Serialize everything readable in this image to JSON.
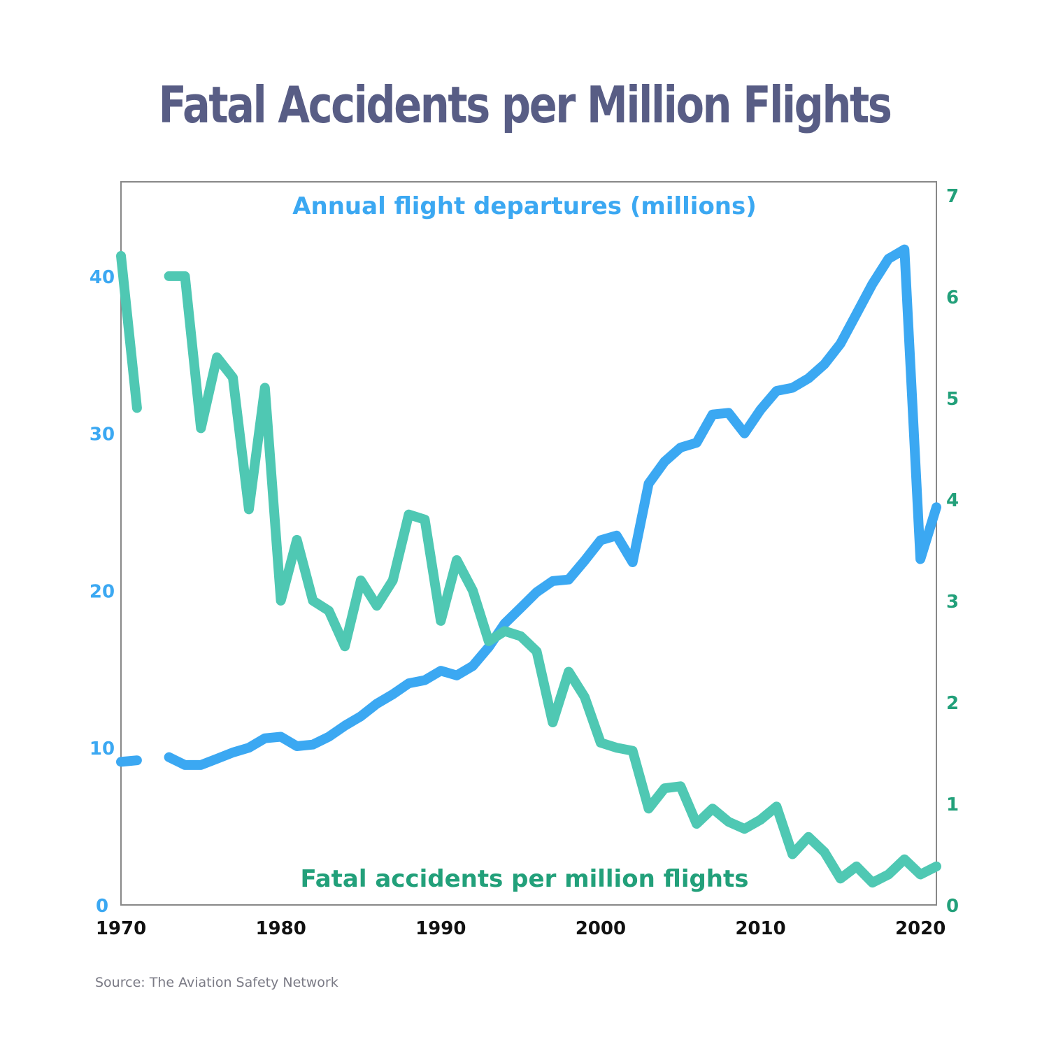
{
  "colors": {
    "title": "#585d85",
    "departures": "#3ba8f2",
    "departures_axis": "#3ba8f2",
    "accidents": "#4fc8b3",
    "accidents_axis": "#22a07a",
    "x_axis_text": "#111111",
    "frame": "#888888",
    "source": "#7a7a85"
  },
  "chart_data": {
    "type": "line",
    "title": "Fatal Accidents per Million Flights",
    "source": "Source: The Aviation Safety Network",
    "xlim": [
      1970,
      2021
    ],
    "x_ticks": [
      1970,
      1980,
      1990,
      2000,
      2010,
      2020
    ],
    "y_left": {
      "lim": [
        0,
        46
      ],
      "ticks": [
        0,
        10,
        20,
        30,
        40
      ]
    },
    "y_right": {
      "lim": [
        0,
        7.13
      ],
      "ticks": [
        0,
        1,
        2,
        3,
        4,
        5,
        6,
        7
      ]
    },
    "series": [
      {
        "name": "Annual flight departures (millions)",
        "axis": "left",
        "color_key": "departures",
        "label_position": "top-center",
        "points": [
          [
            1970,
            9.1
          ],
          [
            1971,
            9.2
          ],
          [
            1972,
            null
          ],
          [
            1973,
            9.4
          ],
          [
            1974,
            8.9
          ],
          [
            1975,
            8.9
          ],
          [
            1976,
            9.3
          ],
          [
            1977,
            9.7
          ],
          [
            1978,
            10.0
          ],
          [
            1979,
            10.6
          ],
          [
            1980,
            10.7
          ],
          [
            1981,
            10.1
          ],
          [
            1982,
            10.2
          ],
          [
            1983,
            10.7
          ],
          [
            1984,
            11.4
          ],
          [
            1985,
            12.0
          ],
          [
            1986,
            12.8
          ],
          [
            1987,
            13.4
          ],
          [
            1988,
            14.1
          ],
          [
            1989,
            14.3
          ],
          [
            1990,
            14.9
          ],
          [
            1991,
            14.6
          ],
          [
            1992,
            15.2
          ],
          [
            1993,
            16.4
          ],
          [
            1994,
            17.9
          ],
          [
            1995,
            18.9
          ],
          [
            1996,
            19.9
          ],
          [
            1997,
            20.6
          ],
          [
            1998,
            20.7
          ],
          [
            1999,
            21.9
          ],
          [
            2000,
            23.2
          ],
          [
            2001,
            23.5
          ],
          [
            2002,
            21.8
          ],
          [
            2003,
            26.8
          ],
          [
            2004,
            28.2
          ],
          [
            2005,
            29.1
          ],
          [
            2006,
            29.4
          ],
          [
            2007,
            31.2
          ],
          [
            2008,
            31.3
          ],
          [
            2009,
            30.0
          ],
          [
            2010,
            31.5
          ],
          [
            2011,
            32.7
          ],
          [
            2012,
            32.9
          ],
          [
            2013,
            33.5
          ],
          [
            2014,
            34.4
          ],
          [
            2015,
            35.7
          ],
          [
            2016,
            37.6
          ],
          [
            2017,
            39.5
          ],
          [
            2018,
            41.1
          ],
          [
            2019,
            41.7
          ],
          [
            2020,
            22.0
          ],
          [
            2021,
            25.3
          ]
        ]
      },
      {
        "name": "Fatal accidents per million flights",
        "axis": "right",
        "color_key": "accidents",
        "label_position": "bottom-center",
        "points": [
          [
            1970,
            6.4
          ],
          [
            1971,
            4.9
          ],
          [
            1972,
            null
          ],
          [
            1973,
            6.2
          ],
          [
            1974,
            6.2
          ],
          [
            1975,
            4.7
          ],
          [
            1976,
            5.4
          ],
          [
            1977,
            5.2
          ],
          [
            1978,
            3.9
          ],
          [
            1979,
            5.1
          ],
          [
            1980,
            3.0
          ],
          [
            1981,
            3.6
          ],
          [
            1982,
            3.0
          ],
          [
            1983,
            2.9
          ],
          [
            1984,
            2.55
          ],
          [
            1985,
            3.2
          ],
          [
            1986,
            2.95
          ],
          [
            1987,
            3.2
          ],
          [
            1988,
            3.85
          ],
          [
            1989,
            3.8
          ],
          [
            1990,
            2.8
          ],
          [
            1991,
            3.4
          ],
          [
            1992,
            3.1
          ],
          [
            1993,
            2.6
          ],
          [
            1994,
            2.7
          ],
          [
            1995,
            2.65
          ],
          [
            1996,
            2.5
          ],
          [
            1997,
            1.8
          ],
          [
            1998,
            2.3
          ],
          [
            1999,
            2.05
          ],
          [
            2000,
            1.6
          ],
          [
            2001,
            1.55
          ],
          [
            2002,
            1.52
          ],
          [
            2003,
            0.95
          ],
          [
            2004,
            1.15
          ],
          [
            2005,
            1.17
          ],
          [
            2006,
            0.8
          ],
          [
            2007,
            0.95
          ],
          [
            2008,
            0.82
          ],
          [
            2009,
            0.75
          ],
          [
            2010,
            0.84
          ],
          [
            2011,
            0.97
          ],
          [
            2012,
            0.5
          ],
          [
            2013,
            0.67
          ],
          [
            2014,
            0.52
          ],
          [
            2015,
            0.26
          ],
          [
            2016,
            0.38
          ],
          [
            2017,
            0.22
          ],
          [
            2018,
            0.3
          ],
          [
            2019,
            0.45
          ],
          [
            2020,
            0.3
          ],
          [
            2021,
            0.38
          ]
        ]
      }
    ]
  }
}
